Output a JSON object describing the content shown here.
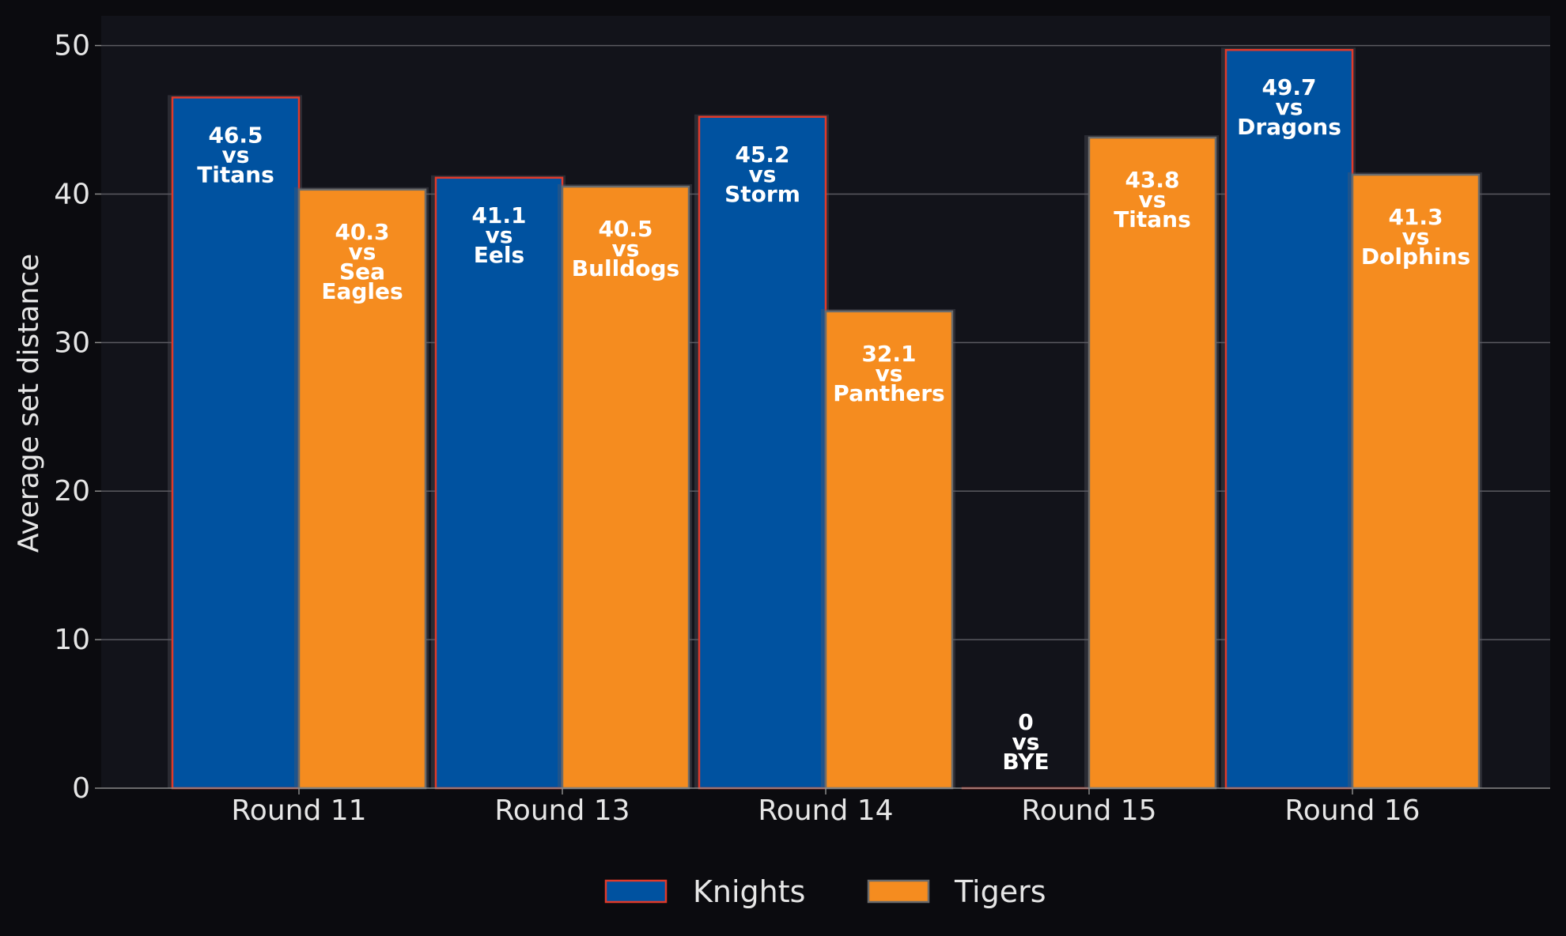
{
  "chart_data": {
    "type": "bar",
    "title": "",
    "xlabel": "",
    "ylabel": "Average set distance",
    "ylim": [
      0,
      52
    ],
    "yticks": [
      0,
      10,
      20,
      30,
      40,
      50
    ],
    "grid": true,
    "legend_position": "bottom-center",
    "categories": [
      "Round 11",
      "Round 13",
      "Round 14",
      "Round 15",
      "Round 16"
    ],
    "series": [
      {
        "name": "Knights",
        "color": "#0052a0",
        "edge_color": "#e03a2a",
        "values": [
          46.5,
          41.1,
          45.2,
          0,
          49.7
        ],
        "opponents": [
          "Titans",
          "Eels",
          "Storm",
          "BYE",
          "Dragons"
        ]
      },
      {
        "name": "Tigers",
        "color": "#f58c1f",
        "edge_color": "#6b6b6b",
        "values": [
          40.3,
          40.5,
          32.1,
          43.8,
          41.3
        ],
        "opponents": [
          "Sea Eagles",
          "Bulldogs",
          "Panthers",
          "Titans",
          "Dolphins"
        ]
      }
    ],
    "vs_text": "vs"
  }
}
